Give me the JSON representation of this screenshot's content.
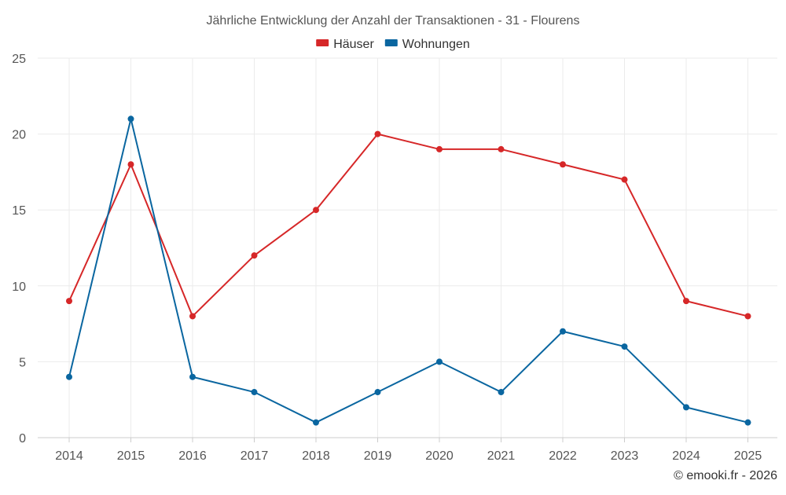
{
  "chart_data": {
    "type": "line",
    "title": "Jährliche Entwicklung der Anzahl der Transaktionen - 31 - Flourens",
    "x": [
      "2014",
      "2015",
      "2016",
      "2017",
      "2018",
      "2019",
      "2020",
      "2021",
      "2022",
      "2023",
      "2024",
      "2025"
    ],
    "series": [
      {
        "name": "Häuser",
        "color": "#d62728",
        "values": [
          9,
          18,
          8,
          12,
          15,
          20,
          19,
          19,
          18,
          17,
          9,
          8
        ]
      },
      {
        "name": "Wohnungen",
        "color": "#0a66a0",
        "values": [
          4,
          21,
          4,
          3,
          1,
          3,
          5,
          3,
          7,
          6,
          2,
          1
        ]
      }
    ],
    "ylim": [
      0,
      25
    ],
    "yticks": [
      "0",
      "5",
      "10",
      "15",
      "20",
      "25"
    ],
    "xlabel": "",
    "ylabel": "",
    "grid": true,
    "legend": "top-center"
  },
  "credit": "© emooki.fr - 2026"
}
